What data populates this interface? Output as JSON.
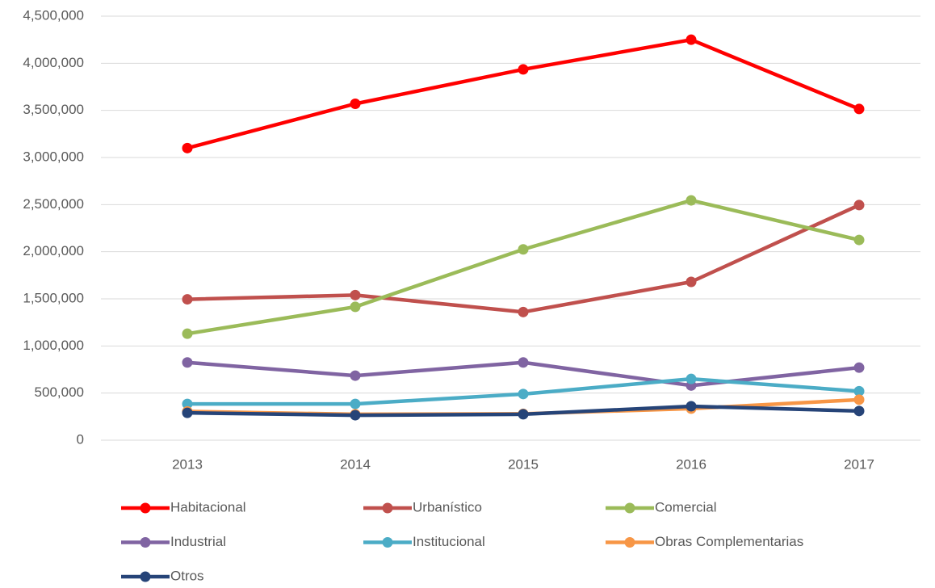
{
  "chart_data": {
    "type": "line",
    "categories": [
      "2013",
      "2014",
      "2015",
      "2016",
      "2017"
    ],
    "series": [
      {
        "name": "Habitacional",
        "color": "#ff0000",
        "values": [
          3100000,
          3570000,
          3935000,
          4250000,
          3515000
        ]
      },
      {
        "name": "Urbanístico",
        "color": "#c0504d",
        "values": [
          1495000,
          1540000,
          1360000,
          1680000,
          2495000
        ]
      },
      {
        "name": "Comercial",
        "color": "#9bbb59",
        "values": [
          1130000,
          1415000,
          2025000,
          2545000,
          2125000
        ]
      },
      {
        "name": "Industrial",
        "color": "#8064a2",
        "values": [
          825000,
          685000,
          825000,
          580000,
          770000
        ]
      },
      {
        "name": "Institucional",
        "color": "#4bacc6",
        "values": [
          385000,
          385000,
          490000,
          650000,
          520000
        ]
      },
      {
        "name": "Obras Complementarias",
        "color": "#f79646",
        "values": [
          305000,
          275000,
          280000,
          335000,
          430000
        ]
      },
      {
        "name": "Otros",
        "color": "#264478",
        "values": [
          290000,
          265000,
          275000,
          360000,
          310000
        ]
      }
    ],
    "ylim": [
      0,
      4500000
    ],
    "yticks": [
      0,
      {
        "value": 500000,
        "label": "500,000"
      },
      {
        "value": 1000000,
        "label": "1,000,000"
      },
      {
        "value": 1500000,
        "label": "1,500,000"
      },
      {
        "value": 2000000,
        "label": "2,000,000"
      },
      {
        "value": 2500000,
        "label": "2,500,000"
      },
      {
        "value": 3000000,
        "label": "3,000,000"
      },
      {
        "value": 3500000,
        "label": "3,500,000"
      },
      {
        "value": 4000000,
        "label": "4,000,000"
      },
      {
        "value": 4500000,
        "label": "4,500,000"
      }
    ],
    "grid": true,
    "legend": "bottom"
  }
}
